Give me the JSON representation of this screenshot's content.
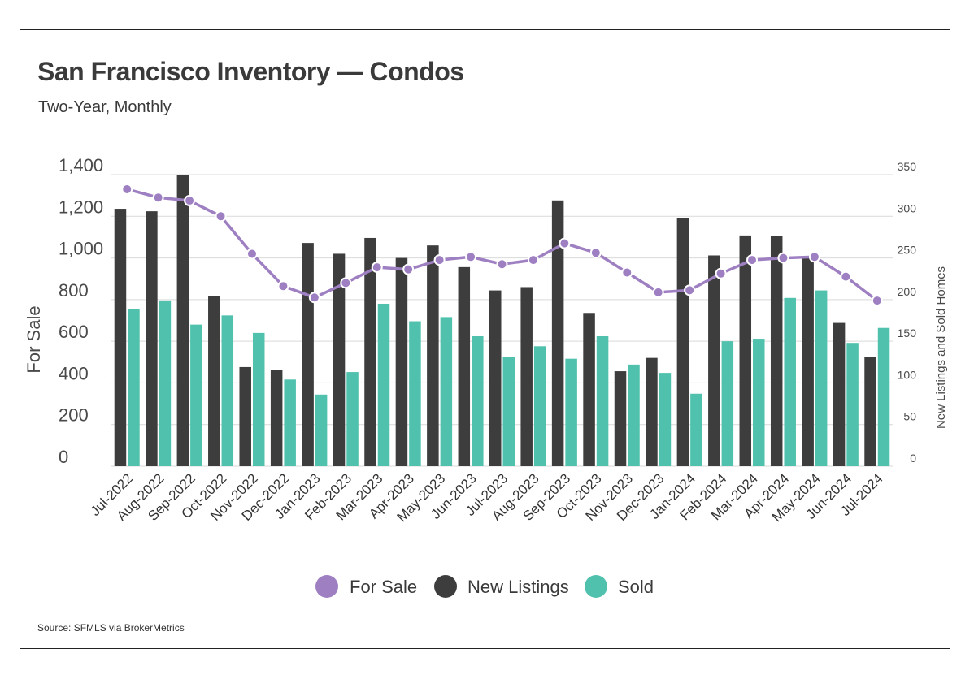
{
  "title": "San Francisco Inventory — Condos",
  "subtitle": "Two-Year, Monthly",
  "source": "Source:  SFMLS via BrokerMetrics",
  "colors": {
    "for_sale": "#9e7fc2",
    "new_listings": "#3d3d3d",
    "sold": "#4fc1ad",
    "grid": "#d9d9d9"
  },
  "chart_data": {
    "type": "bar",
    "title": "San Francisco Inventory — Condos",
    "subtitle": "Two-Year, Monthly",
    "categories": [
      "Jul-2022",
      "Aug-2022",
      "Sep-2022",
      "Oct-2022",
      "Nov-2022",
      "Dec-2022",
      "Jan-2023",
      "Feb-2023",
      "Mar-2023",
      "Apr-2023",
      "May-2023",
      "Jun-2023",
      "Jul-2023",
      "Aug-2023",
      "Sep-2023",
      "Oct-2023",
      "Nov-2023",
      "Dec-2023",
      "Jan-2024",
      "Feb-2024",
      "Mar-2024",
      "Apr-2024",
      "May-2024",
      "Jun-2024",
      "Jul-2024"
    ],
    "series": [
      {
        "name": "For Sale",
        "type": "line",
        "axis": "left",
        "values": [
          1330,
          1290,
          1275,
          1200,
          1020,
          865,
          810,
          880,
          955,
          945,
          990,
          1005,
          970,
          990,
          1070,
          1025,
          930,
          835,
          845,
          925,
          990,
          1000,
          1005,
          910,
          795
        ]
      },
      {
        "name": "New Listings",
        "type": "bar",
        "axis": "right",
        "values": [
          309,
          306,
          350,
          204,
          119,
          116,
          268,
          255,
          274,
          250,
          265,
          239,
          211,
          215,
          319,
          184,
          114,
          130,
          298,
          253,
          277,
          276,
          251,
          172,
          131
        ]
      },
      {
        "name": "Sold",
        "type": "bar",
        "axis": "right",
        "values": [
          189,
          199,
          170,
          181,
          160,
          104,
          86,
          113,
          195,
          174,
          179,
          156,
          131,
          144,
          129,
          156,
          122,
          112,
          87,
          150,
          153,
          202,
          211,
          148,
          166
        ]
      }
    ],
    "left_axis": {
      "label": "For Sale",
      "ylim": [
        0,
        1400
      ],
      "ticks": [
        "0",
        "200",
        "400",
        "600",
        "800",
        "1,000",
        "1,200",
        "1,400"
      ],
      "tick_values": [
        0,
        200,
        400,
        600,
        800,
        1000,
        1200,
        1400
      ]
    },
    "right_axis": {
      "label": "New Listings and Sold Homes",
      "ylim": [
        0,
        350
      ],
      "ticks": [
        "0",
        "50",
        "100",
        "150",
        "200",
        "250",
        "300",
        "350"
      ],
      "tick_values": [
        0,
        50,
        100,
        150,
        200,
        250,
        300,
        350
      ]
    },
    "legend": {
      "position": "bottom",
      "items": [
        "For Sale",
        "New Listings",
        "Sold"
      ]
    },
    "grid": true
  }
}
